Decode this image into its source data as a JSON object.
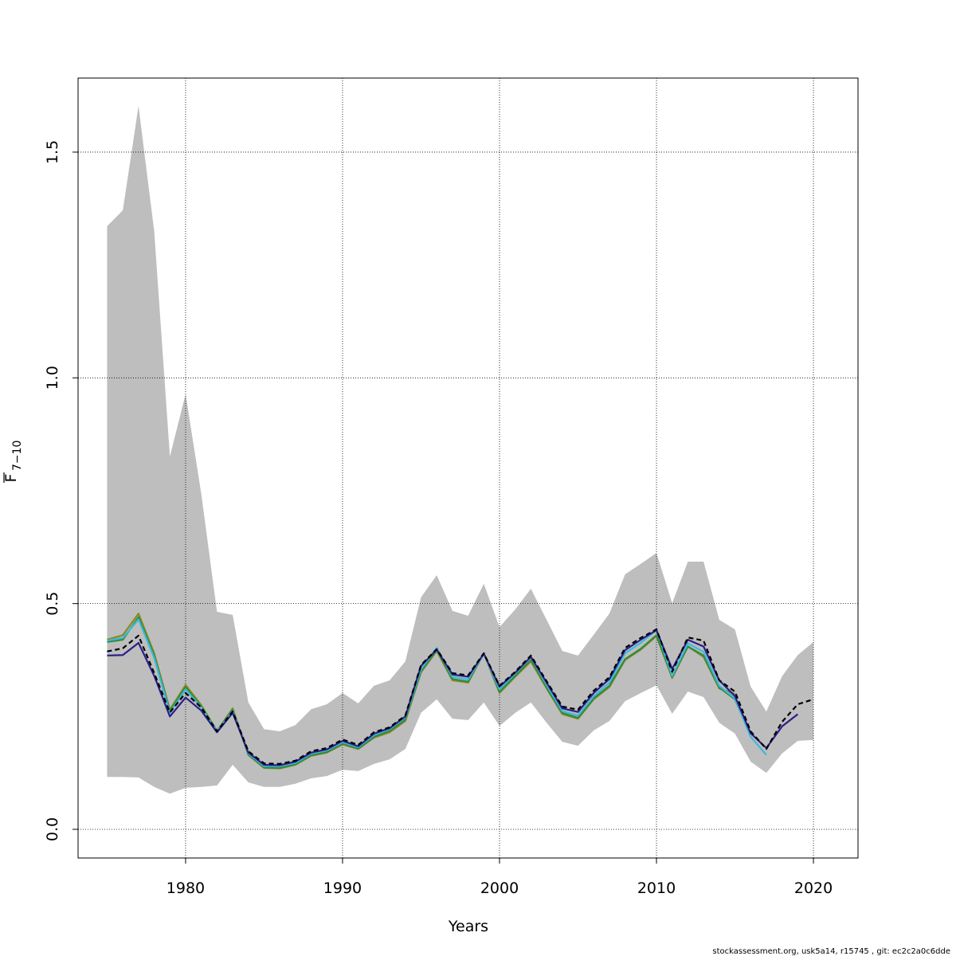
{
  "chart_data": {
    "type": "line",
    "xlabel": "Years",
    "ylabel": "F",
    "ylabel_subscript": "7−10",
    "footer": "stockassessment.org, usk5a14, r15745 , git: ec2c2a0c6dde",
    "xlim": [
      1973.15,
      2022.84
    ],
    "ylim": [
      -0.0635,
      1.664
    ],
    "xticks": [
      1980,
      1990,
      2000,
      2010,
      2020
    ],
    "yticks": [
      {
        "value": 0,
        "label": "0.0"
      },
      0.5,
      {
        "value": 1,
        "label": "1.0"
      },
      1.5
    ],
    "grid": true,
    "x": [
      1975,
      1976,
      1977,
      1978,
      1979,
      1980,
      1981,
      1982,
      1983,
      1984,
      1985,
      1986,
      1987,
      1988,
      1989,
      1990,
      1991,
      1992,
      1993,
      1994,
      1995,
      1996,
      1997,
      1998,
      1999,
      2000,
      2001,
      2002,
      2003,
      2004,
      2005,
      2006,
      2007,
      2008,
      2009,
      2010,
      2011,
      2012,
      2013,
      2014,
      2015,
      2016,
      2017,
      2018,
      2019,
      2020
    ],
    "band": {
      "color": "#bebebe",
      "upper": [
        1.336,
        1.371,
        1.602,
        1.325,
        0.826,
        0.964,
        0.743,
        0.482,
        0.475,
        0.281,
        0.222,
        0.217,
        0.231,
        0.266,
        0.277,
        0.302,
        0.279,
        0.318,
        0.33,
        0.372,
        0.514,
        0.563,
        0.484,
        0.473,
        0.544,
        0.448,
        0.487,
        0.533,
        0.464,
        0.395,
        0.385,
        0.431,
        0.478,
        0.565,
        0.588,
        0.612,
        0.501,
        0.593,
        0.593,
        0.464,
        0.443,
        0.316,
        0.261,
        0.339,
        0.386,
        0.415
      ],
      "lower": [
        0.116,
        0.116,
        0.115,
        0.094,
        0.079,
        0.092,
        0.094,
        0.097,
        0.143,
        0.104,
        0.094,
        0.094,
        0.101,
        0.113,
        0.118,
        0.132,
        0.129,
        0.145,
        0.155,
        0.178,
        0.258,
        0.288,
        0.245,
        0.242,
        0.281,
        0.229,
        0.258,
        0.281,
        0.236,
        0.194,
        0.185,
        0.219,
        0.24,
        0.284,
        0.302,
        0.319,
        0.256,
        0.305,
        0.293,
        0.236,
        0.212,
        0.15,
        0.125,
        0.168,
        0.196,
        0.198
      ]
    },
    "series": [
      {
        "color": "#8a8a20",
        "values": [
          0.42,
          0.43,
          0.478,
          0.39,
          0.265,
          0.32,
          0.275,
          0.218,
          0.268,
          0.165,
          0.136,
          0.135,
          0.143,
          0.163,
          0.17,
          0.188,
          0.178,
          0.203,
          0.215,
          0.24,
          0.348,
          0.395,
          0.33,
          0.325,
          0.39,
          0.302,
          0.338,
          0.372,
          0.312,
          0.255,
          0.245,
          0.288,
          0.315,
          0.375,
          0.398,
          0.428,
          0.335,
          0.405,
          0.382,
          0.312,
          0.3,
          null,
          null,
          null,
          null,
          null
        ]
      },
      {
        "color": "#2e8b3e",
        "values": [
          0.415,
          0.42,
          0.47,
          0.385,
          0.262,
          0.315,
          0.272,
          0.218,
          0.265,
          0.165,
          0.137,
          0.136,
          0.144,
          0.164,
          0.171,
          0.19,
          0.179,
          0.205,
          0.218,
          0.243,
          0.35,
          0.398,
          0.333,
          0.327,
          0.39,
          0.305,
          0.34,
          0.375,
          0.315,
          0.258,
          0.247,
          0.29,
          0.318,
          0.377,
          0.4,
          0.43,
          0.338,
          0.405,
          0.385,
          0.314,
          0.288,
          0.21,
          null,
          null,
          null,
          null
        ]
      },
      {
        "color": "#3fb8d8",
        "values": [
          0.418,
          0.424,
          0.465,
          0.38,
          0.258,
          0.31,
          0.27,
          0.217,
          0.262,
          0.168,
          0.14,
          0.14,
          0.147,
          0.168,
          0.175,
          0.193,
          0.182,
          0.209,
          0.222,
          0.248,
          0.355,
          0.402,
          0.338,
          0.332,
          0.389,
          0.31,
          0.345,
          0.382,
          0.32,
          0.262,
          0.252,
          0.295,
          0.325,
          0.39,
          0.413,
          0.442,
          0.34,
          0.412,
          0.393,
          0.318,
          0.29,
          0.205,
          0.165,
          null,
          null,
          null
        ]
      },
      {
        "color": "#2a1f8a",
        "values": [
          0.385,
          0.386,
          0.413,
          0.34,
          0.25,
          0.292,
          0.263,
          0.215,
          0.258,
          0.17,
          0.143,
          0.142,
          0.15,
          0.17,
          0.177,
          0.196,
          0.184,
          0.212,
          0.224,
          0.25,
          0.362,
          0.398,
          0.343,
          0.338,
          0.389,
          0.316,
          0.347,
          0.382,
          0.325,
          0.268,
          0.26,
          0.302,
          0.333,
          0.397,
          0.42,
          0.441,
          0.355,
          0.42,
          0.405,
          0.33,
          0.295,
          0.213,
          0.18,
          0.228,
          0.255,
          null
        ]
      },
      {
        "color": "#000000",
        "dashed": true,
        "values": [
          0.394,
          0.401,
          0.429,
          0.346,
          0.259,
          0.302,
          0.27,
          0.217,
          0.261,
          0.173,
          0.146,
          0.145,
          0.152,
          0.173,
          0.18,
          0.199,
          0.187,
          0.215,
          0.226,
          0.252,
          0.364,
          0.399,
          0.346,
          0.341,
          0.39,
          0.318,
          0.349,
          0.385,
          0.328,
          0.272,
          0.265,
          0.307,
          0.337,
          0.402,
          0.424,
          0.443,
          0.349,
          0.425,
          0.418,
          0.33,
          0.305,
          0.217,
          0.178,
          0.238,
          0.277,
          0.288
        ]
      }
    ]
  }
}
